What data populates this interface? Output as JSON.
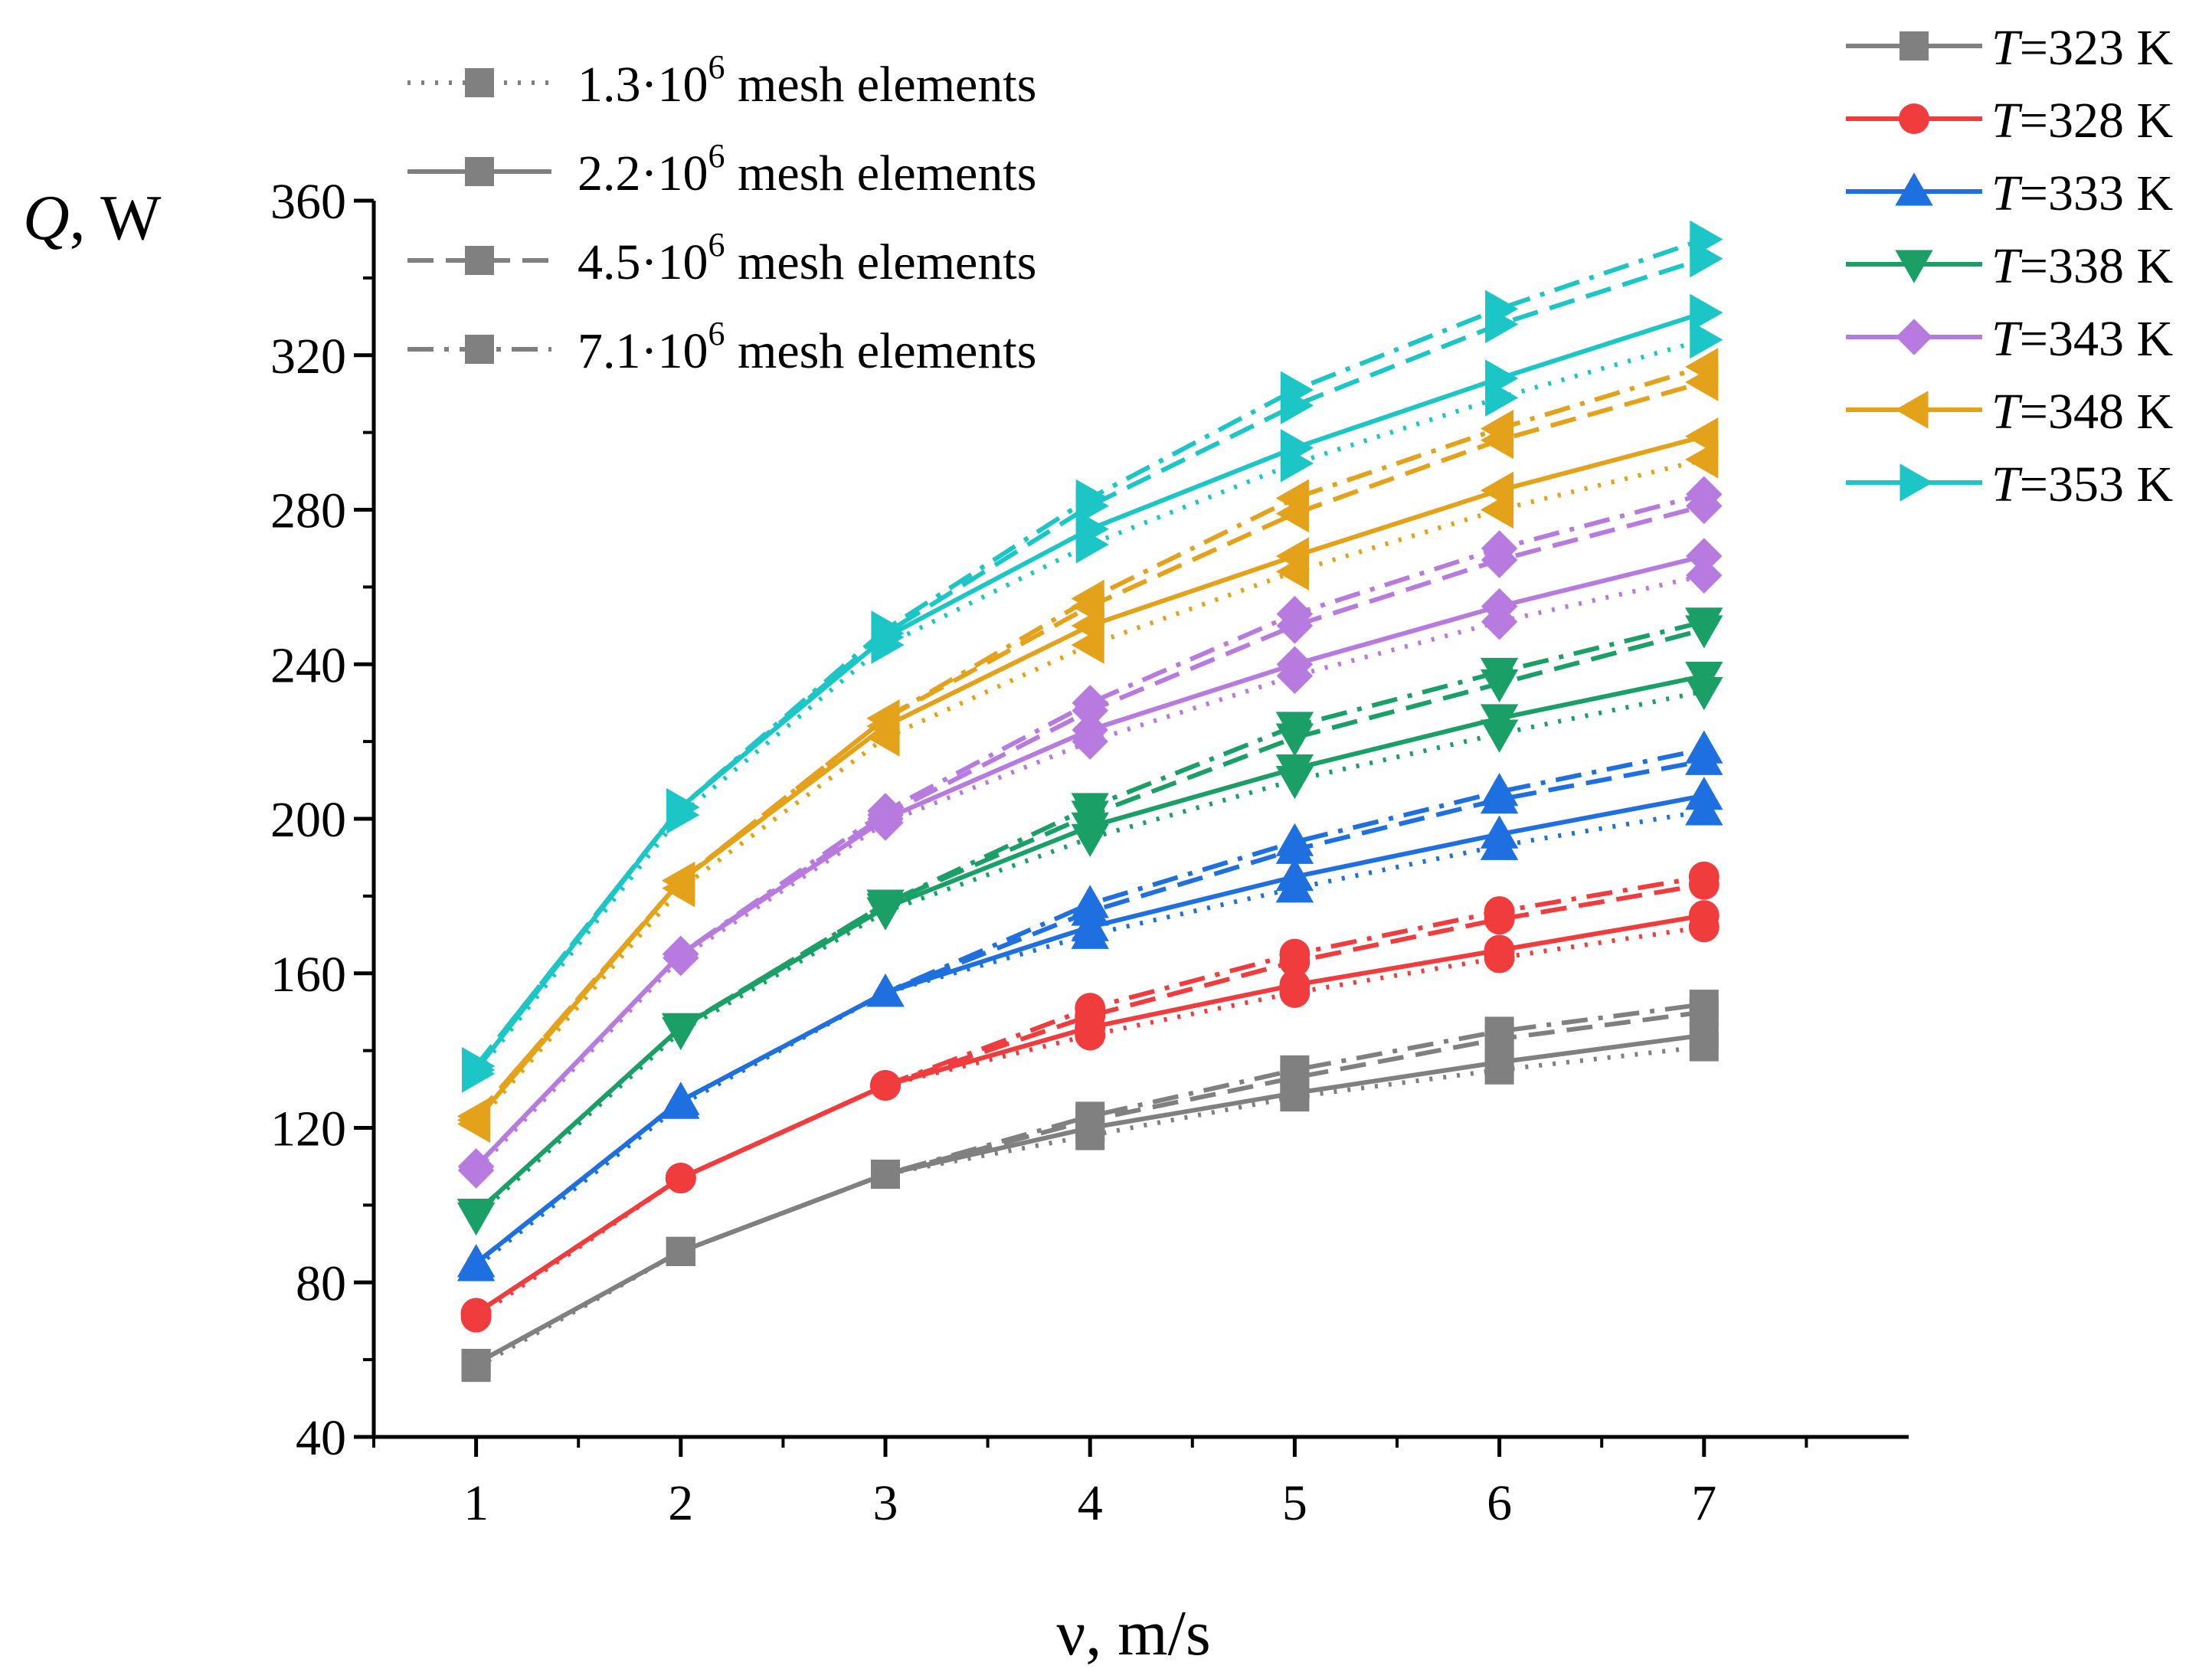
{
  "chart_data": {
    "type": "line",
    "xlabel": "ν, m/s",
    "ylabel_var": "Q",
    "ylabel_unit": ", W",
    "x": [
      1,
      2,
      3,
      4,
      5,
      6,
      7
    ],
    "xticks": [
      1,
      2,
      3,
      4,
      5,
      6,
      7
    ],
    "xlim": [
      0.5,
      8.0
    ],
    "yticks": [
      40,
      80,
      120,
      160,
      200,
      240,
      280,
      320,
      360
    ],
    "ylim": [
      40,
      360
    ],
    "grid": false,
    "mesh_legend": [
      {
        "prefix": "1.3·10",
        "exp": "6",
        "suffix": " mesh elements",
        "dash": "dot"
      },
      {
        "prefix": "2.2·10",
        "exp": "6",
        "suffix": " mesh elements",
        "dash": "solid"
      },
      {
        "prefix": "4.5·10",
        "exp": "6",
        "suffix": " mesh elements",
        "dash": "dash"
      },
      {
        "prefix": "7.1·10",
        "exp": "6",
        "suffix": " mesh elements",
        "dash": "dashdot"
      }
    ],
    "series": [
      {
        "t_var": "T",
        "t_rest": "=323 K",
        "color": "#808080",
        "marker": "square",
        "mesh": {
          "dot": [
            58,
            88,
            108,
            118,
            128,
            135,
            141
          ],
          "solid": [
            59,
            88,
            108,
            120,
            129,
            137,
            144
          ],
          "dash": [
            59,
            88,
            108,
            122,
            133,
            143,
            150
          ],
          "dashdot": [
            59,
            88,
            108,
            123,
            135,
            145,
            152
          ]
        }
      },
      {
        "t_var": "T",
        "t_rest": "=328 K",
        "color": "#f03c3c",
        "marker": "circle",
        "mesh": {
          "dot": [
            71,
            107,
            131,
            144,
            155,
            164,
            172
          ],
          "solid": [
            72,
            107,
            131,
            146,
            157,
            166,
            175
          ],
          "dash": [
            72,
            107,
            131,
            149,
            163,
            174,
            183
          ],
          "dashdot": [
            72,
            107,
            131,
            151,
            165,
            176,
            185
          ]
        }
      },
      {
        "t_var": "T",
        "t_rest": "=333 K",
        "color": "#1e6fe0",
        "marker": "triangle-up",
        "mesh": {
          "dot": [
            84,
            126,
            155,
            170,
            182,
            193,
            202
          ],
          "solid": [
            85,
            127,
            155,
            172,
            185,
            196,
            206
          ],
          "dash": [
            85,
            127,
            155,
            176,
            192,
            205,
            215
          ],
          "dashdot": [
            85,
            127,
            155,
            178,
            194,
            207,
            218
          ]
        }
      },
      {
        "t_var": "T",
        "t_rest": "=338 K",
        "color": "#1aa066",
        "marker": "triangle-down",
        "mesh": {
          "dot": [
            97,
            145,
            176,
            195,
            210,
            222,
            233
          ],
          "solid": [
            98,
            146,
            177,
            198,
            213,
            226,
            237
          ],
          "dash": [
            98,
            146,
            178,
            201,
            221,
            235,
            249
          ],
          "dashdot": [
            98,
            146,
            178,
            203,
            224,
            238,
            251
          ]
        }
      },
      {
        "t_var": "T",
        "t_rest": "=343 K",
        "color": "#b77be0",
        "marker": "diamond",
        "mesh": {
          "dot": [
            109,
            164,
            199,
            220,
            237,
            251,
            263
          ],
          "solid": [
            110,
            165,
            200,
            223,
            240,
            255,
            268
          ],
          "dash": [
            110,
            165,
            201,
            228,
            250,
            267,
            281
          ],
          "dashdot": [
            110,
            165,
            202,
            230,
            253,
            270,
            284
          ]
        }
      },
      {
        "t_var": "T",
        "t_rest": "=348 K",
        "color": "#e3a21a",
        "marker": "triangle-left",
        "mesh": {
          "dot": [
            121,
            182,
            221,
            245,
            264,
            280,
            293
          ],
          "solid": [
            122,
            184,
            224,
            250,
            268,
            285,
            299
          ],
          "dash": [
            123,
            184,
            226,
            255,
            279,
            298,
            313
          ],
          "dashdot": [
            123,
            184,
            226,
            257,
            283,
            301,
            317
          ]
        }
      },
      {
        "t_var": "T",
        "t_rest": "=353 K",
        "color": "#1cc6c6",
        "marker": "triangle-right",
        "mesh": {
          "dot": [
            134,
            201,
            245,
            271,
            292,
            309,
            324
          ],
          "solid": [
            135,
            203,
            247,
            275,
            296,
            314,
            331
          ],
          "dash": [
            136,
            203,
            248,
            281,
            307,
            328,
            345
          ],
          "dashdot": [
            136,
            203,
            249,
            283,
            311,
            332,
            350
          ]
        }
      }
    ]
  }
}
